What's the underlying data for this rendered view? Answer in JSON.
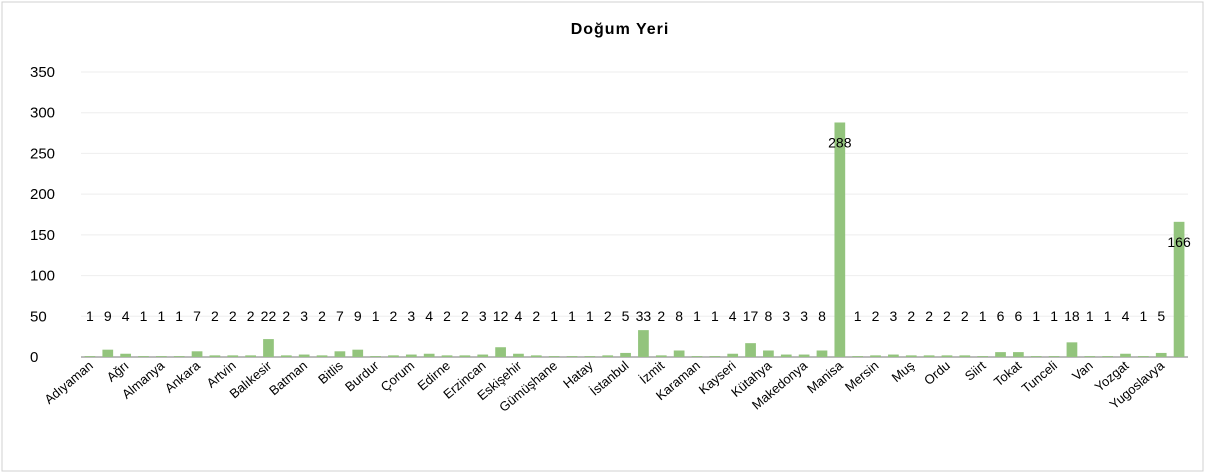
{
  "chart_data": {
    "type": "bar",
    "title": "Doğum Yeri",
    "categories": [
      "Adıyaman",
      null,
      "Ağrı",
      null,
      "Almanya",
      null,
      "Ankara",
      null,
      "Artvin",
      null,
      "Balıkesir",
      null,
      "Batman",
      null,
      "Bitlis",
      null,
      "Burdur",
      null,
      "Çorum",
      null,
      "Edirne",
      null,
      "Erzincan",
      null,
      "Eskişehir",
      null,
      "Gümüşhane",
      null,
      "Hatay",
      null,
      "İstanbul",
      null,
      "İzmit",
      null,
      "Karaman",
      null,
      "Kayseri",
      null,
      "Kütahya",
      null,
      "Makedonya",
      null,
      "Manisa",
      null,
      "Mersin",
      null,
      "Muş",
      null,
      "Ordu",
      null,
      "Siirt",
      null,
      "Tokat",
      null,
      "Tunceli",
      null,
      "Van",
      null,
      "Yozgat",
      null,
      "Yugoslavya",
      null
    ],
    "values": [
      1,
      9,
      4,
      1,
      1,
      1,
      7,
      2,
      2,
      2,
      22,
      2,
      3,
      2,
      7,
      9,
      1,
      2,
      3,
      4,
      2,
      2,
      3,
      12,
      4,
      2,
      1,
      1,
      1,
      2,
      5,
      33,
      2,
      8,
      1,
      1,
      4,
      17,
      8,
      3,
      3,
      8,
      288,
      1,
      2,
      3,
      2,
      2,
      2,
      2,
      1,
      6,
      6,
      1,
      1,
      18,
      1,
      1,
      4,
      1,
      5,
      166
    ],
    "color": "#93c47d",
    "ylim": [
      0,
      350
    ],
    "yticks": [
      0,
      50,
      100,
      150,
      200,
      250,
      300,
      350
    ],
    "grid": true
  }
}
